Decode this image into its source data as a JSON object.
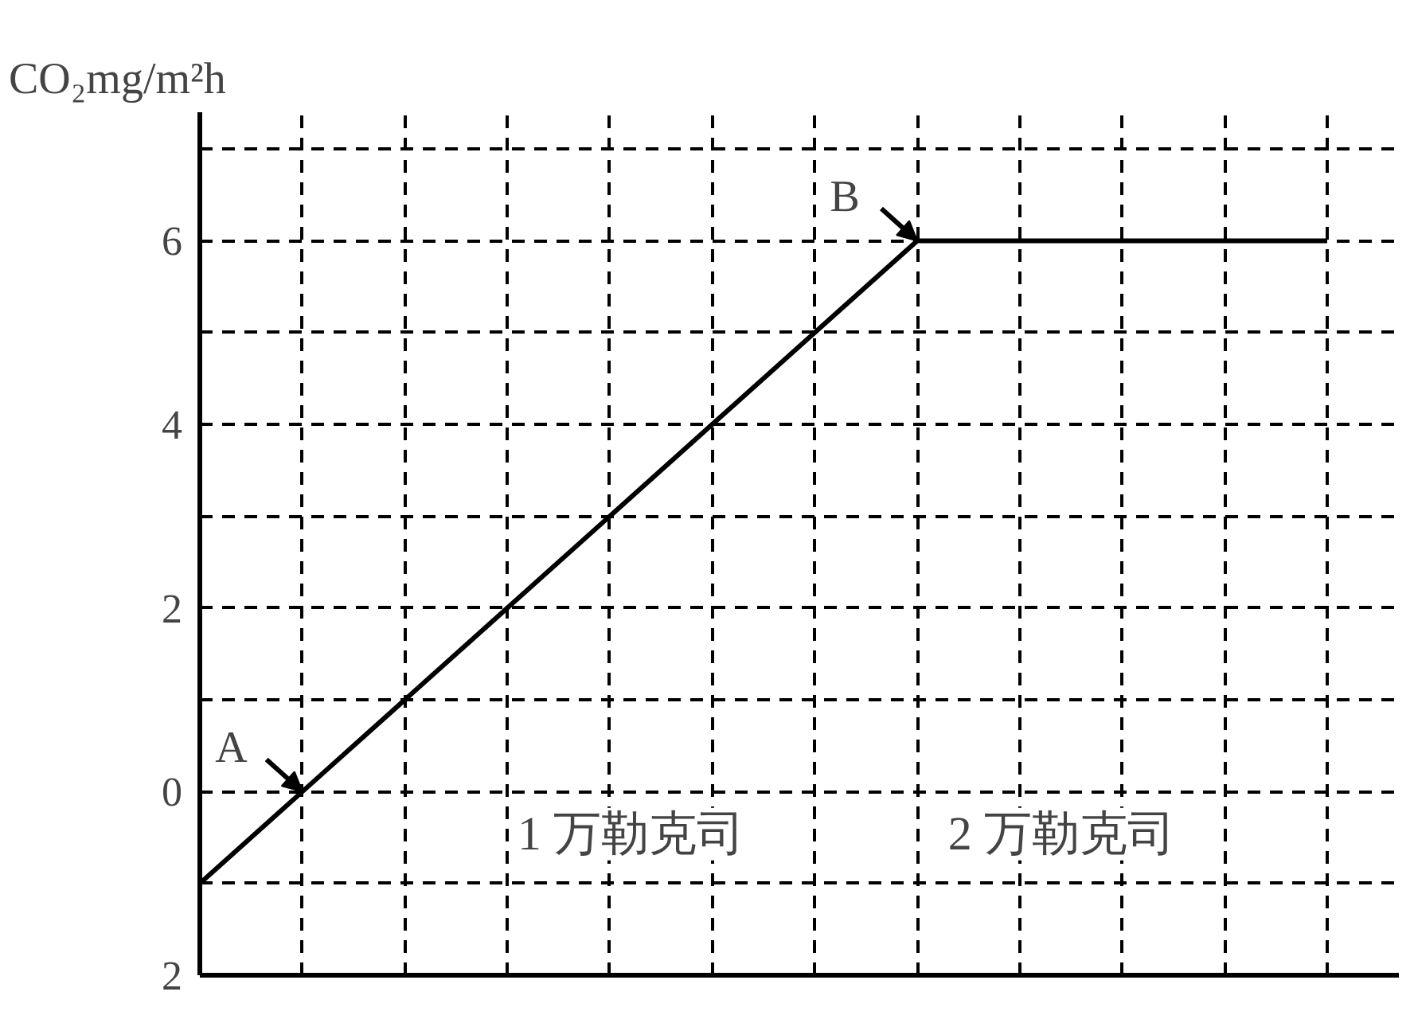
{
  "chart_data": {
    "type": "line",
    "ylabel": "CO₂mg/m²h",
    "categories": [
      null,
      null,
      null,
      null,
      null,
      null,
      null,
      null,
      null,
      null,
      null,
      null
    ],
    "series": [
      {
        "color": "#000000",
        "values": [
          -1,
          0,
          1,
          2,
          3,
          4,
          5,
          6,
          6,
          6,
          6,
          6
        ]
      }
    ],
    "ylim": [
      -2,
      7.4
    ],
    "yticks": [
      {
        "value": -2,
        "label": "2"
      },
      {
        "value": -1,
        "label": null
      },
      0,
      {
        "value": 1,
        "label": null
      },
      2,
      {
        "value": 3,
        "label": null
      },
      4,
      {
        "value": 5,
        "label": null
      },
      6,
      {
        "value": 7,
        "label": null
      }
    ],
    "annotations": [
      "A",
      "B",
      "1 万勒克司",
      "2 万勒克司"
    ],
    "grid": true,
    "tick_labels": "y",
    "marker": "none",
    "line_style": "solid"
  }
}
